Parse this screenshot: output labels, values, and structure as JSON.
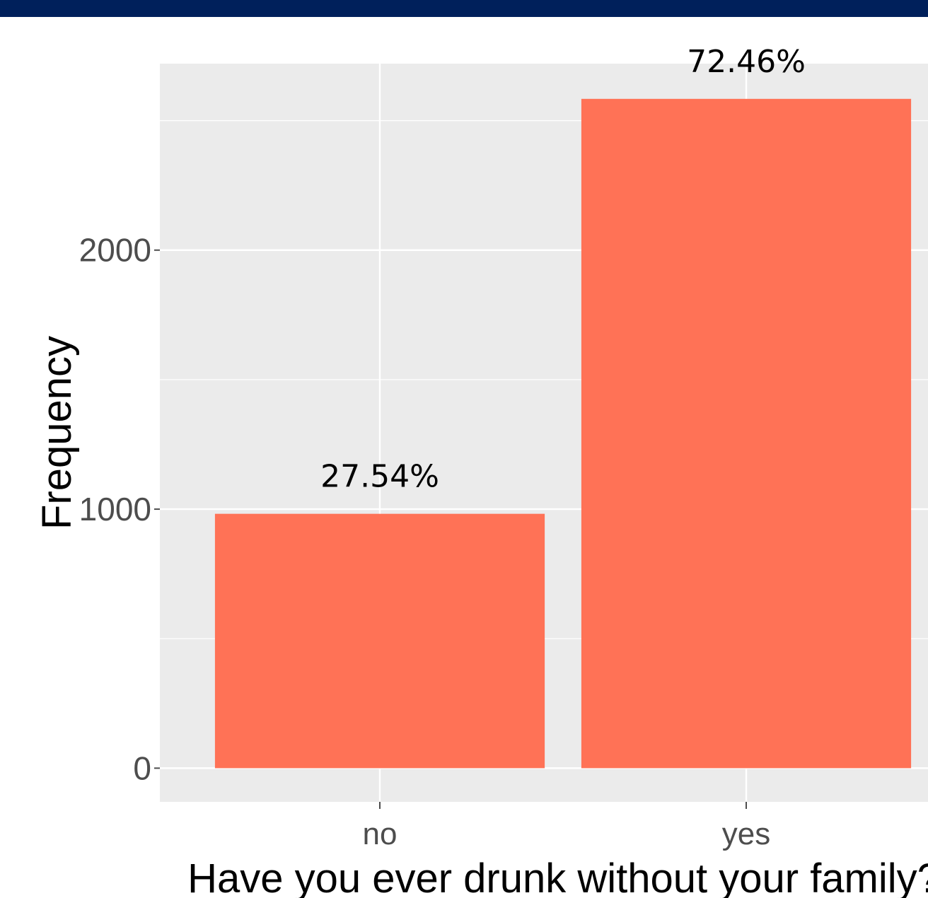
{
  "colors": {
    "header_band": "#00205b",
    "panel_background": "#ebebeb",
    "gridline": "#ffffff",
    "bar_fill": "#ff7256",
    "tick_color": "#4d4d4d",
    "text_color": "#000000"
  },
  "chart_data": {
    "type": "bar",
    "categories": [
      "no",
      "yes"
    ],
    "values": [
      982,
      2584
    ],
    "data_labels": [
      "27.54%",
      "72.46%"
    ],
    "xlabel": "Have you ever drunk without your family?",
    "ylabel": "Frequency",
    "yticks": [
      0,
      1000,
      2000
    ],
    "ylim": [
      -130,
      2720
    ],
    "grid": true,
    "legend": "none"
  }
}
